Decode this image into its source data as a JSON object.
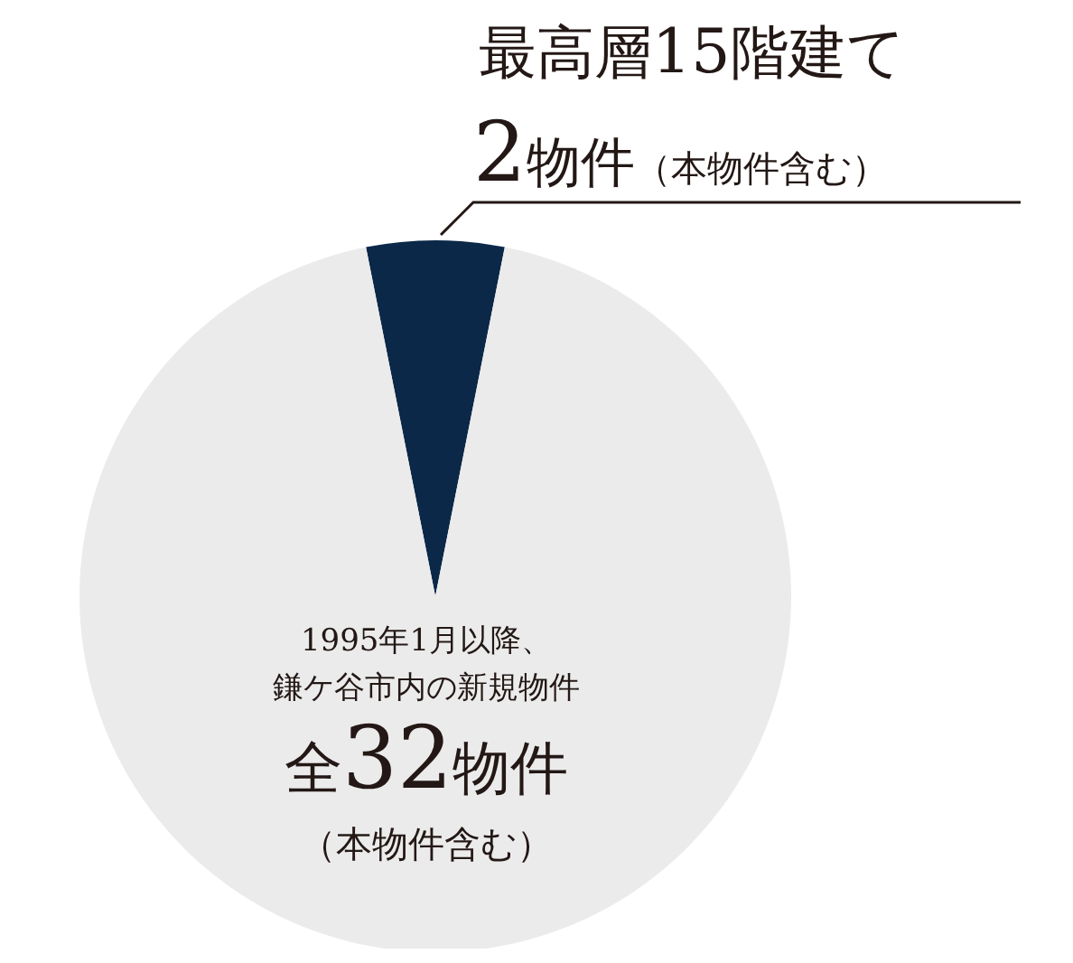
{
  "chart_data": {
    "type": "pie",
    "categories": [
      null,
      null
    ],
    "values": [
      6.25,
      93.75
    ],
    "colors": [
      "#0c2848",
      "#ebebeb"
    ],
    "annotations": [
      "最高層15階建て",
      "2物件（本物件含む）",
      "1995年1月以降、",
      "鎌ケ谷市内の新規物件",
      "全32物件",
      "（本物件含む）"
    ]
  }
}
